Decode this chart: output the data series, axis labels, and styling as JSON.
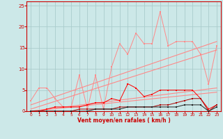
{
  "xlabel": "Vent moyen/en rafales ( km/h )",
  "bg_color": "#cce8e8",
  "grid_color": "#aacccc",
  "axis_color": "#cc0000",
  "x_values": [
    0,
    1,
    2,
    3,
    4,
    5,
    6,
    7,
    8,
    9,
    10,
    11,
    12,
    13,
    14,
    15,
    16,
    17,
    18,
    19,
    20,
    21,
    22,
    23
  ],
  "line1_y": [
    2.5,
    5.5,
    5.5,
    3.0,
    1.0,
    1.0,
    8.5,
    0.5,
    8.5,
    0.5,
    10.5,
    16.0,
    13.5,
    18.5,
    16.0,
    16.0,
    23.5,
    15.5,
    16.5,
    16.5,
    16.5,
    13.5,
    6.5,
    15.5
  ],
  "line2_y": [
    0.0,
    0.0,
    0.5,
    1.0,
    1.0,
    1.0,
    1.0,
    1.5,
    2.0,
    2.0,
    3.0,
    2.5,
    6.5,
    5.5,
    3.5,
    4.0,
    5.0,
    5.0,
    5.0,
    5.0,
    5.0,
    3.0,
    0.5,
    1.5
  ],
  "line3_y": [
    0.0,
    0.0,
    0.0,
    0.0,
    0.0,
    0.0,
    0.5,
    0.5,
    0.5,
    0.5,
    0.5,
    1.0,
    1.0,
    1.0,
    1.0,
    1.0,
    1.5,
    1.5,
    2.0,
    2.5,
    3.0,
    3.0,
    0.0,
    1.5
  ],
  "line4_y": [
    0.0,
    0.0,
    0.0,
    0.0,
    0.0,
    0.0,
    0.0,
    0.0,
    0.5,
    0.5,
    0.5,
    0.5,
    1.0,
    1.0,
    1.0,
    1.0,
    1.0,
    1.0,
    1.0,
    1.5,
    1.5,
    1.5,
    0.0,
    1.0
  ],
  "trend1_x": [
    0,
    23
  ],
  "trend1_y": [
    1.5,
    16.5
  ],
  "trend2_x": [
    0,
    23
  ],
  "trend2_y": [
    0.5,
    14.5
  ],
  "trend3_x": [
    0,
    23
  ],
  "trend3_y": [
    0.0,
    5.5
  ],
  "trend4_x": [
    0,
    23
  ],
  "trend4_y": [
    0.0,
    4.5
  ],
  "ylim": [
    0,
    26
  ],
  "yticks": [
    0,
    5,
    10,
    15,
    20,
    25
  ],
  "xticks": [
    0,
    1,
    2,
    3,
    4,
    5,
    6,
    7,
    8,
    9,
    10,
    11,
    12,
    13,
    14,
    15,
    16,
    17,
    18,
    19,
    20,
    21,
    22,
    23
  ]
}
